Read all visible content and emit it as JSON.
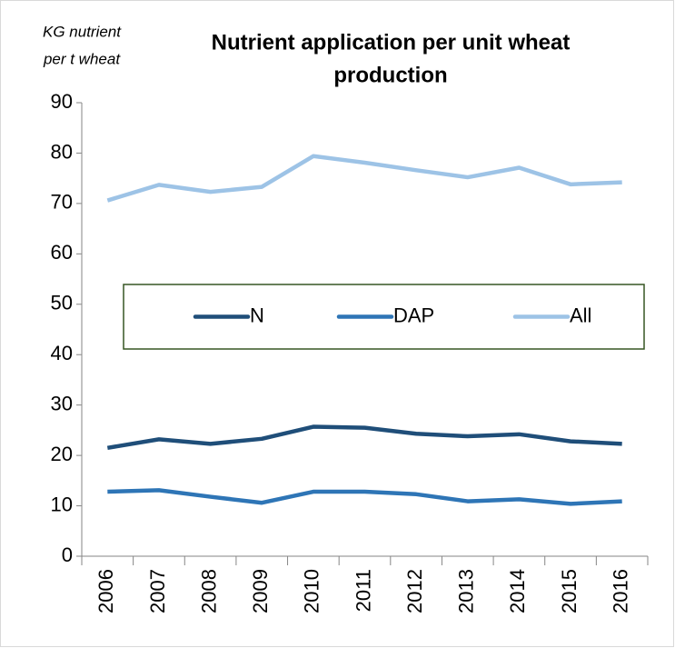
{
  "chart_data": {
    "type": "line",
    "title": [
      "Nutrient application per unit wheat",
      "production"
    ],
    "y_label": [
      "KG nutrient",
      "per t wheat"
    ],
    "categories": [
      "2006",
      "2007",
      "2008",
      "2009",
      "2010",
      "2011",
      "2012",
      "2013",
      "2014",
      "2015",
      "2016"
    ],
    "series": [
      {
        "name": "N",
        "color": "#1f4e79",
        "values": [
          21.5,
          23.2,
          22.3,
          23.3,
          25.7,
          25.5,
          24.3,
          23.8,
          24.2,
          22.8,
          22.3
        ]
      },
      {
        "name": "DAP",
        "color": "#2e75b6",
        "values": [
          12.8,
          13.1,
          11.8,
          10.6,
          12.8,
          12.8,
          12.3,
          10.9,
          11.3,
          10.4,
          10.9
        ]
      },
      {
        "name": "All",
        "color": "#9dc3e6",
        "values": [
          70.6,
          73.7,
          72.3,
          73.3,
          79.4,
          78.1,
          76.6,
          75.2,
          77.1,
          73.8,
          74.2
        ]
      }
    ],
    "ylim": [
      0,
      90
    ],
    "yticks": [
      0,
      10,
      20,
      30,
      40,
      50,
      60,
      70,
      80,
      90
    ],
    "legend": "center",
    "grid": false
  }
}
